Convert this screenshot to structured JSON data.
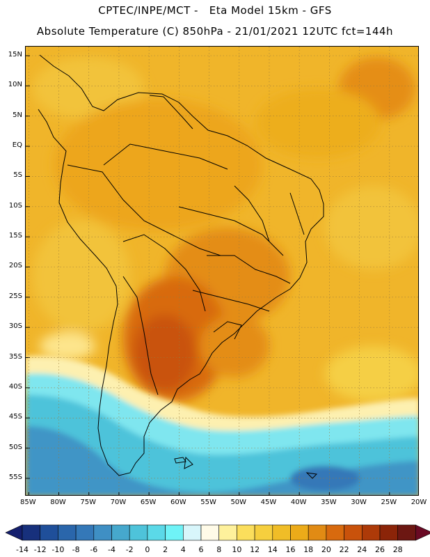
{
  "header": {
    "line1": "CPTEC/INPE/MCT -   Eta Model 15km - GFS",
    "line2": "Absolute Temperature (C) 850hPa - 21/01/2021 12UTC fct=144h"
  },
  "axes": {
    "lat_labels": [
      "15N",
      "10N",
      "5N",
      "EQ",
      "5S",
      "10S",
      "15S",
      "20S",
      "25S",
      "30S",
      "35S",
      "40S",
      "45S",
      "50S",
      "55S"
    ],
    "lat_values": [
      15,
      10,
      5,
      0,
      -5,
      -10,
      -15,
      -20,
      -25,
      -30,
      -35,
      -40,
      -45,
      -50,
      -55
    ],
    "lon_labels": [
      "85W",
      "80W",
      "75W",
      "70W",
      "65W",
      "60W",
      "55W",
      "50W",
      "45W",
      "40W",
      "35W",
      "30W",
      "25W",
      "20W"
    ],
    "lon_values": [
      -85,
      -80,
      -75,
      -70,
      -65,
      -60,
      -55,
      -50,
      -45,
      -40,
      -35,
      -30,
      -25,
      -20
    ],
    "lat_range": [
      -58,
      16.5
    ],
    "lon_range": [
      -85.5,
      -20
    ]
  },
  "colorbar": {
    "labels": [
      "-14",
      "-12",
      "-10",
      "-8",
      "-6",
      "-4",
      "-2",
      "0",
      "2",
      "4",
      "6",
      "8",
      "10",
      "12",
      "14",
      "16",
      "18",
      "20",
      "22",
      "24",
      "26",
      "28"
    ],
    "colors": [
      "#17307c",
      "#1f4f9a",
      "#2a66ab",
      "#3478b8",
      "#3f8fc4",
      "#46a8cd",
      "#4ec3da",
      "#5bd9e8",
      "#6ff3f7",
      "#d8f6fb",
      "#fffbe8",
      "#fef19c",
      "#fbde5c",
      "#f6cf3e",
      "#f0bd27",
      "#ecab19",
      "#e18b14",
      "#d86a0e",
      "#c9520b",
      "#ad3a08",
      "#8b2408",
      "#6c1712"
    ],
    "under_color": "#141f6e",
    "over_color": "#6a0a24"
  },
  "map": {
    "background_color": "#f0b52a"
  }
}
